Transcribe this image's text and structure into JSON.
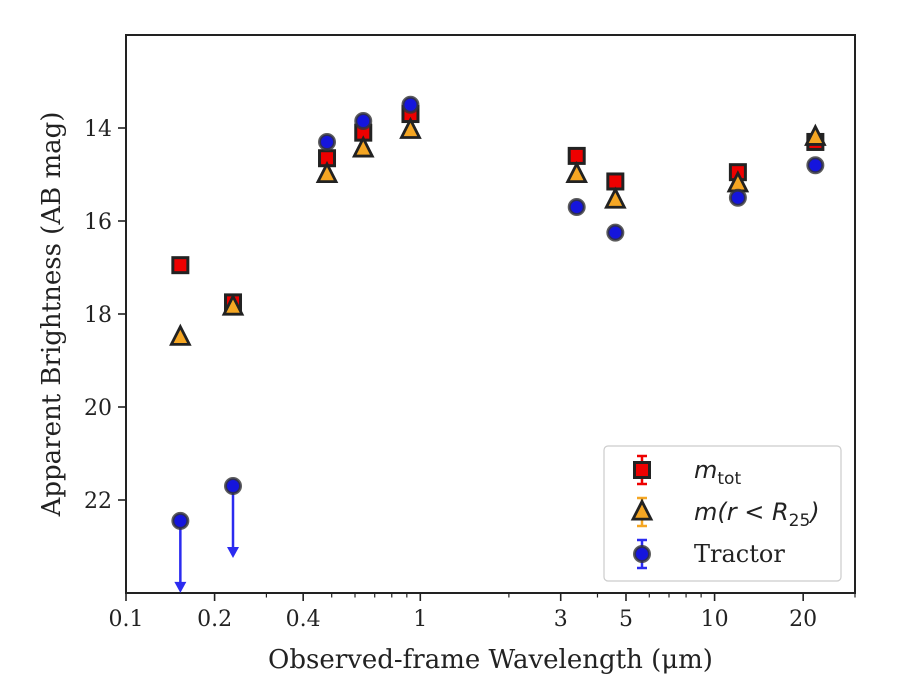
{
  "chart_data": {
    "type": "scatter",
    "xlabel": "Observed-frame Wavelength (μm)",
    "ylabel": "Apparent Brightness (AB mag)",
    "x_scale": "log",
    "xlim": [
      0.1,
      30
    ],
    "ylim": [
      24.0,
      12.0
    ],
    "y_inverted": true,
    "x_ticks": [
      {
        "value": 0.1,
        "label": "0.1"
      },
      {
        "value": 0.2,
        "label": "0.2"
      },
      {
        "value": 0.4,
        "label": "0.4"
      },
      {
        "value": 1,
        "label": "1"
      },
      {
        "value": 3,
        "label": "3"
      },
      {
        "value": 5,
        "label": "5"
      },
      {
        "value": 10,
        "label": "10"
      },
      {
        "value": 20,
        "label": "20"
      }
    ],
    "x_minor_ticks": [
      0.3,
      0.5,
      0.6,
      0.7,
      0.8,
      0.9,
      2,
      4,
      6,
      7,
      8,
      9,
      30
    ],
    "y_ticks": [
      {
        "value": 14,
        "label": "14"
      },
      {
        "value": 16,
        "label": "16"
      },
      {
        "value": 18,
        "label": "18"
      },
      {
        "value": 20,
        "label": "20"
      },
      {
        "value": 22,
        "label": "22"
      }
    ],
    "grid": false,
    "legend": {
      "placement": "bottom-right",
      "entries": [
        {
          "label_main": "m",
          "label_sub": "tot",
          "label_tail": "",
          "marker": "square"
        },
        {
          "label_main": "m(r < R",
          "label_sub": "25",
          "label_tail": ")",
          "marker": "triangle"
        },
        {
          "label_main": "Tractor",
          "label_sub": "",
          "label_tail": "",
          "marker": "circle"
        }
      ]
    },
    "series": [
      {
        "key": "m_tot",
        "marker": "square",
        "color": "#ee0000",
        "edge_color": "#222222",
        "points": [
          {
            "x": 0.153,
            "y": 16.95
          },
          {
            "x": 0.231,
            "y": 17.75
          },
          {
            "x": 0.482,
            "y": 14.65
          },
          {
            "x": 0.64,
            "y": 14.1
          },
          {
            "x": 0.926,
            "y": 13.7
          },
          {
            "x": 3.4,
            "y": 14.6
          },
          {
            "x": 4.6,
            "y": 15.15
          },
          {
            "x": 12.0,
            "y": 14.95
          },
          {
            "x": 22.0,
            "y": 14.3
          }
        ]
      },
      {
        "key": "m_r25",
        "marker": "triangle",
        "color": "#f5a623",
        "edge_color": "#222222",
        "points": [
          {
            "x": 0.153,
            "y": 18.5
          },
          {
            "x": 0.231,
            "y": 17.85
          },
          {
            "x": 0.482,
            "y": 15.0
          },
          {
            "x": 0.64,
            "y": 14.45
          },
          {
            "x": 0.926,
            "y": 14.05
          },
          {
            "x": 3.4,
            "y": 15.0
          },
          {
            "x": 4.6,
            "y": 15.55
          },
          {
            "x": 12.0,
            "y": 15.2
          },
          {
            "x": 22.0,
            "y": 14.2
          }
        ]
      },
      {
        "key": "tractor",
        "marker": "circle",
        "color": "#1515dd",
        "edge_color": "#333333",
        "points": [
          {
            "x": 0.153,
            "y": 22.45,
            "upper_limit": true
          },
          {
            "x": 0.231,
            "y": 21.7,
            "upper_limit": true
          },
          {
            "x": 0.482,
            "y": 14.3
          },
          {
            "x": 0.64,
            "y": 13.85
          },
          {
            "x": 0.926,
            "y": 13.5
          },
          {
            "x": 3.4,
            "y": 15.7
          },
          {
            "x": 4.6,
            "y": 16.25
          },
          {
            "x": 12.0,
            "y": 15.5
          },
          {
            "x": 22.0,
            "y": 14.8
          }
        ]
      }
    ]
  }
}
